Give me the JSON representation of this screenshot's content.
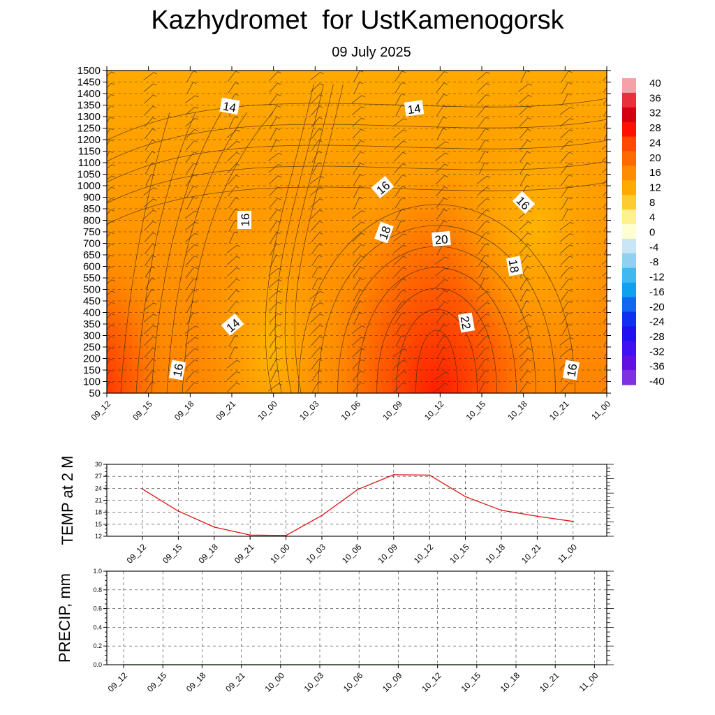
{
  "title": "Kazhydromet  for UstKamenogorsk",
  "subtitle": "09 July 2025",
  "colors": {
    "temp_line": "#e01010",
    "precip_line": "#006400",
    "grid": "#000000"
  },
  "chart_data": [
    {
      "type": "heatmap",
      "name_hint": "cross-section",
      "x_ticks": [
        "09_12",
        "09_15",
        "09_18",
        "09_21",
        "10_00",
        "10_03",
        "10_06",
        "10_09",
        "10_12",
        "10_15",
        "10_18",
        "10_21",
        "11_00"
      ],
      "y_ticks": [
        50,
        100,
        150,
        200,
        250,
        300,
        350,
        400,
        450,
        500,
        550,
        600,
        650,
        700,
        750,
        800,
        850,
        900,
        1000,
        1050,
        1100,
        1150,
        1200,
        1250,
        1300,
        1350,
        1400,
        1450,
        1500
      ],
      "contour_labels": [
        "14",
        "14",
        "16",
        "16",
        "18",
        "20",
        "16",
        "18",
        "14",
        "22",
        "16",
        "16"
      ],
      "colorbar_levels": [
        40,
        36,
        32,
        28,
        24,
        20,
        16,
        12,
        8,
        4,
        0,
        -4,
        -8,
        -12,
        -16,
        -20,
        -24,
        -28,
        -32,
        -36,
        -40
      ],
      "colorbar_colors": [
        "#f6a0a8",
        "#e8303c",
        "#d40010",
        "#ff1000",
        "#ff4800",
        "#ff6a00",
        "#ff8c00",
        "#ffaa00",
        "#ffcc30",
        "#fff090",
        "#ffffd0",
        "#c8e6f5",
        "#90d0f0",
        "#40b8f0",
        "#10a0f0",
        "#1068f0",
        "#1030f0",
        "#2010f0",
        "#4010f0",
        "#6010e0",
        "#8030e0"
      ],
      "grid": true
    },
    {
      "type": "line",
      "ylabel": "TEMP at 2 M",
      "x": [
        "09_12",
        "09_15",
        "09_18",
        "09_21",
        "10_00",
        "10_03",
        "10_06",
        "10_09",
        "10_12",
        "10_15",
        "10_18",
        "10_21",
        "11_00"
      ],
      "values": [
        23.8,
        18.3,
        14.3,
        12.3,
        12.2,
        17.2,
        23.7,
        27.4,
        27.3,
        21.9,
        18.5,
        17.0,
        15.7
      ],
      "yticks": [
        "12",
        "15",
        "18",
        "21",
        "24",
        "27",
        "30"
      ],
      "ylim": [
        12,
        30
      ],
      "grid": true
    },
    {
      "type": "line",
      "ylabel": "PRECIP, mm",
      "x": [
        "09_12",
        "09_15",
        "09_18",
        "09_21",
        "10_00",
        "10_03",
        "10_06",
        "10_09",
        "10_12",
        "10_15",
        "10_18",
        "10_21",
        "11_00"
      ],
      "values": [
        0,
        0,
        0,
        0,
        0,
        0,
        0,
        0,
        0,
        0,
        0,
        0,
        0
      ],
      "yticks": [
        "0.0",
        "0.2",
        "0.4",
        "0.6",
        "0.8",
        "1.0"
      ],
      "ylim": [
        0,
        1
      ],
      "grid": true
    }
  ]
}
